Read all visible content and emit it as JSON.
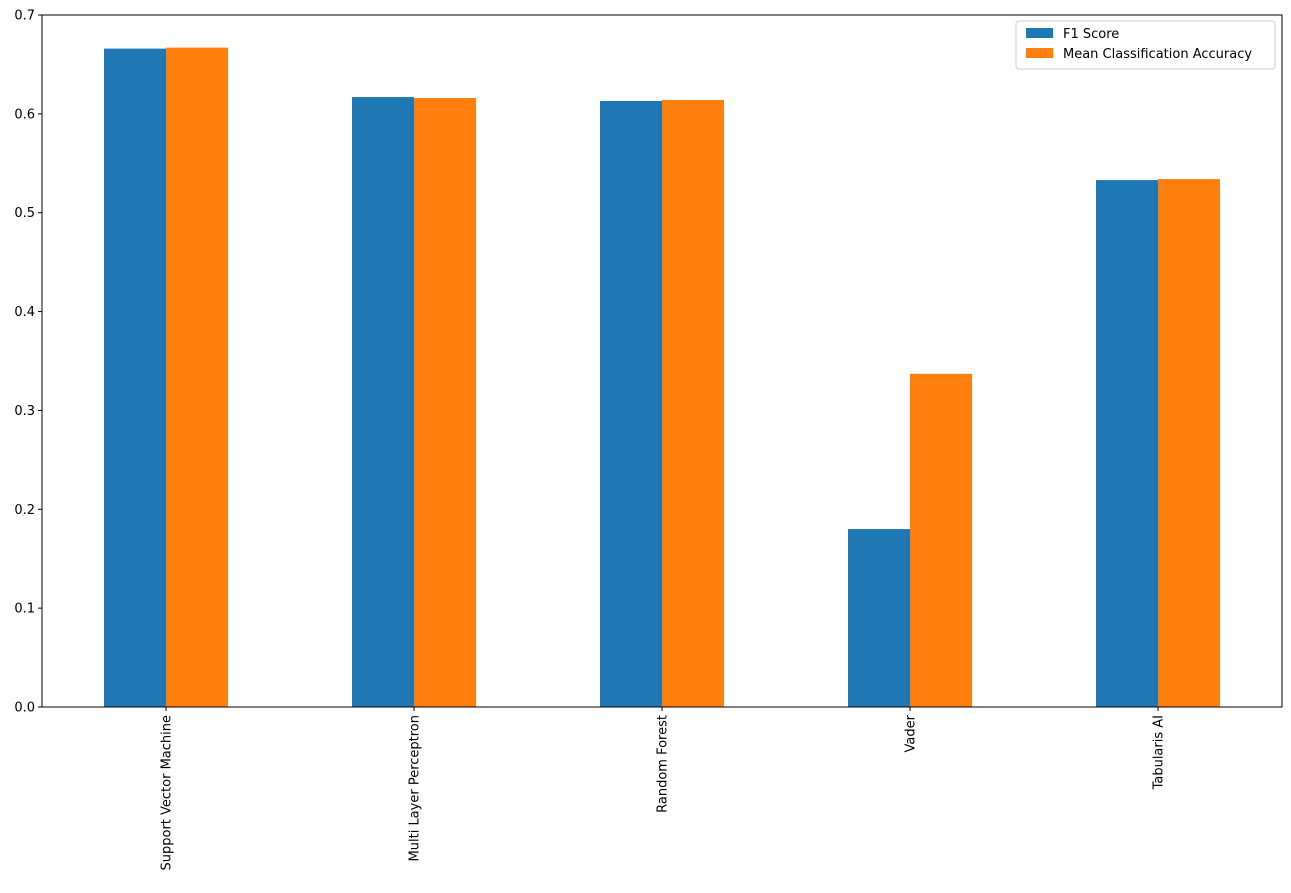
{
  "chart_data": {
    "type": "bar",
    "categories": [
      "Support Vector Machine",
      "Multi Layer Perceptron",
      "Random Forest",
      "Vader",
      "Tabularis AI"
    ],
    "series": [
      {
        "name": "F1 Score",
        "color": "#1f77b4",
        "values": [
          0.666,
          0.617,
          0.613,
          0.18,
          0.533
        ]
      },
      {
        "name": "Mean Classification Accuracy",
        "color": "#ff7f0e",
        "values": [
          0.667,
          0.616,
          0.614,
          0.337,
          0.534
        ]
      }
    ],
    "title": "",
    "xlabel": "",
    "ylabel": "",
    "ylim": [
      0,
      0.7
    ],
    "yticks": [
      "0.0",
      "0.1",
      "0.2",
      "0.3",
      "0.4",
      "0.5",
      "0.6",
      "0.7"
    ],
    "grid": false,
    "legend": "top-right",
    "xtick_rotation": "vertical"
  }
}
